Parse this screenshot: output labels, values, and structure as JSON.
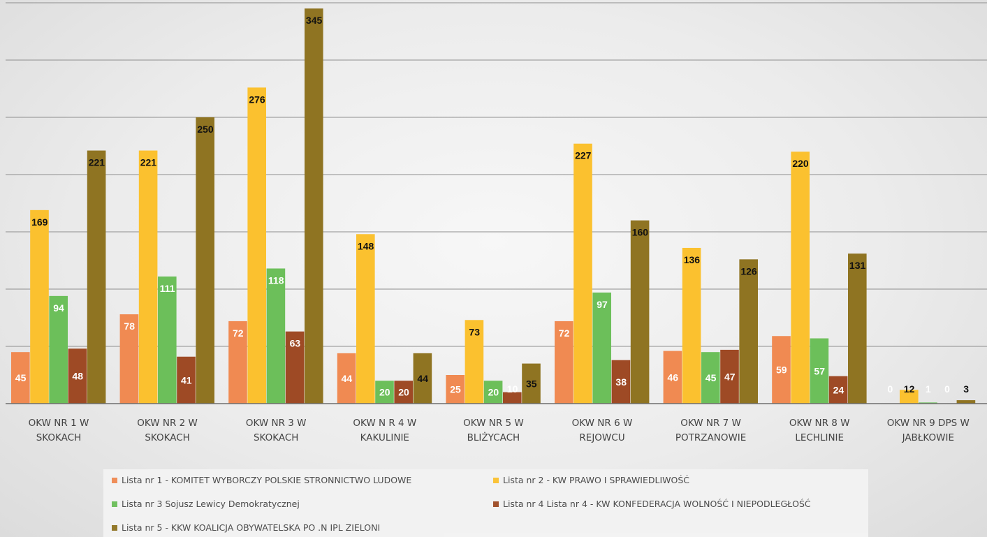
{
  "chart_data": {
    "type": "bar",
    "categories": [
      [
        "OKW NR 1 W",
        "SKOKACH"
      ],
      [
        "OKW NR 2 W",
        "SKOKACH"
      ],
      [
        "OKW NR 3 W",
        "SKOKACH"
      ],
      [
        "OKW N R 4 W",
        "KAKULINIE"
      ],
      [
        "OKW NR 5 W",
        "BLIŻYCACH"
      ],
      [
        "OKW NR 6 W",
        "REJOWCU"
      ],
      [
        "OKW NR 7 W",
        "POTRZANOWIE"
      ],
      [
        "OKW NR 8 W",
        "LECHLINIE"
      ],
      [
        "OKW NR 9 DPS W",
        "JABŁKOWIE"
      ]
    ],
    "series": [
      {
        "name": "Lista nr 1 - KOMITET WYBORCZY POLSKIE STRONNICTWO LUDOWE",
        "color": "#f08a52",
        "label_color": "#ffffff",
        "values": [
          45,
          78,
          72,
          44,
          25,
          72,
          46,
          59,
          0
        ]
      },
      {
        "name": "Lista nr 2 - KW PRAWO I SPRAWIEDLIWOŚĆ",
        "color": "#fbc12f",
        "label_color": "#111111",
        "values": [
          169,
          221,
          276,
          148,
          73,
          227,
          136,
          220,
          12
        ]
      },
      {
        "name": "Lista nr 3 Sojusz Lewicy Demokratycznej",
        "color": "#6cbf5a",
        "label_color": "#ffffff",
        "values": [
          94,
          111,
          118,
          20,
          20,
          97,
          45,
          57,
          1
        ]
      },
      {
        "name": "Lista nr 4 Lista nr 4 - KW KONFEDERACJA WOLNOŚĆ I NIEPODLEGŁOŚĆ",
        "color": "#9e4a25",
        "label_color": "#ffffff",
        "values": [
          48,
          41,
          63,
          20,
          10,
          38,
          47,
          24,
          0
        ]
      },
      {
        "name": "Lista nr 5 - KKW KOALICJA OBYWATELSKA PO .N IPL ZIELONI",
        "color": "#8f7422",
        "label_color": "#111111",
        "values": [
          221,
          250,
          345,
          44,
          35,
          160,
          126,
          131,
          3
        ]
      }
    ],
    "ylim": [
      0,
      350
    ],
    "y_gridlines": [
      50,
      100,
      150,
      200,
      250,
      300,
      350
    ],
    "grid": true,
    "legend": "bottom"
  }
}
